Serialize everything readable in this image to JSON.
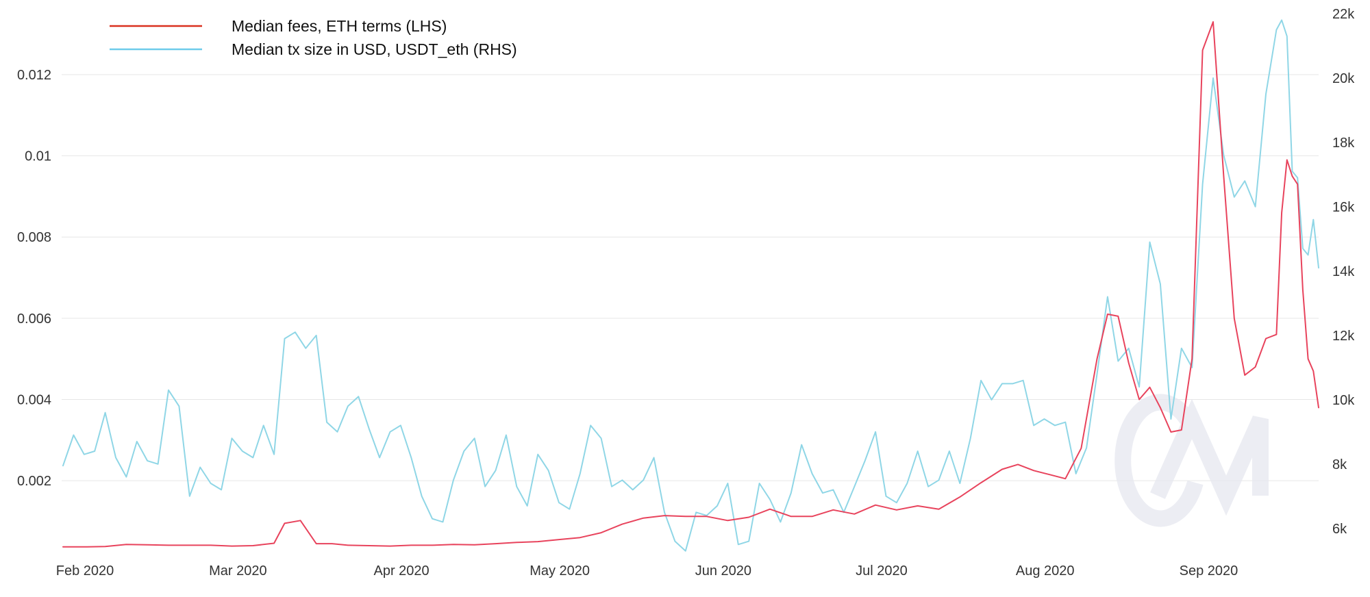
{
  "chart_data": {
    "type": "line",
    "title": "",
    "xlabel": "",
    "ylabel_left": "",
    "ylabel_right": "",
    "x_tick_labels": [
      "Feb 2020",
      "Mar 2020",
      "Apr 2020",
      "May 2020",
      "Jun 2020",
      "Jul 2020",
      "Aug 2020",
      "Sep 2020"
    ],
    "x_tick_dates": [
      "2020-02-01",
      "2020-03-01",
      "2020-04-01",
      "2020-05-01",
      "2020-06-01",
      "2020-07-01",
      "2020-08-01",
      "2020-09-01"
    ],
    "xlim": [
      "2020-02-01",
      "2020-09-26"
    ],
    "y_left_ticks": [
      "0.002",
      "0.004",
      "0.006",
      "0.008",
      "0.01",
      "0.012"
    ],
    "y_left_tick_values": [
      0.002,
      0.004,
      0.006,
      0.008,
      0.01,
      0.012
    ],
    "ylim_left": [
      0.00035,
      0.0135
    ],
    "y_right_ticks": [
      "6k",
      "8k",
      "10k",
      "12k",
      "14k",
      "16k",
      "18k",
      "20k",
      "22k"
    ],
    "y_right_tick_values": [
      6000,
      8000,
      10000,
      12000,
      14000,
      16000,
      18000,
      20000,
      22000
    ],
    "ylim_right": [
      5400,
      22000
    ],
    "grid": true,
    "legend_position": "top-left",
    "watermark": "CM",
    "series": [
      {
        "name": "Median fees, ETH terms (LHS)",
        "axis": "left",
        "color": "#e8435c",
        "legend_color": "#d9301f",
        "data": [
          [
            "2020-02-01",
            0.00037
          ],
          [
            "2020-02-05",
            0.00037
          ],
          [
            "2020-02-09",
            0.00038
          ],
          [
            "2020-02-13",
            0.00043
          ],
          [
            "2020-02-17",
            0.00042
          ],
          [
            "2020-02-21",
            0.00041
          ],
          [
            "2020-02-25",
            0.00041
          ],
          [
            "2020-02-29",
            0.00041
          ],
          [
            "2020-03-04",
            0.00039
          ],
          [
            "2020-03-08",
            0.0004
          ],
          [
            "2020-03-12",
            0.00046
          ],
          [
            "2020-03-14",
            0.00095
          ],
          [
            "2020-03-17",
            0.00102
          ],
          [
            "2020-03-20",
            0.00045
          ],
          [
            "2020-03-23",
            0.00045
          ],
          [
            "2020-03-26",
            0.00041
          ],
          [
            "2020-03-30",
            0.0004
          ],
          [
            "2020-04-03",
            0.00039
          ],
          [
            "2020-04-07",
            0.00041
          ],
          [
            "2020-04-11",
            0.00041
          ],
          [
            "2020-04-15",
            0.00043
          ],
          [
            "2020-04-19",
            0.00042
          ],
          [
            "2020-04-23",
            0.00045
          ],
          [
            "2020-04-27",
            0.00048
          ],
          [
            "2020-05-01",
            0.0005
          ],
          [
            "2020-05-05",
            0.00055
          ],
          [
            "2020-05-09",
            0.0006
          ],
          [
            "2020-05-13",
            0.00072
          ],
          [
            "2020-05-17",
            0.00093
          ],
          [
            "2020-05-21",
            0.00108
          ],
          [
            "2020-05-25",
            0.00114
          ],
          [
            "2020-05-29",
            0.00112
          ],
          [
            "2020-06-02",
            0.00112
          ],
          [
            "2020-06-06",
            0.00102
          ],
          [
            "2020-06-10",
            0.0011
          ],
          [
            "2020-06-14",
            0.0013
          ],
          [
            "2020-06-18",
            0.00112
          ],
          [
            "2020-06-22",
            0.00112
          ],
          [
            "2020-06-26",
            0.00128
          ],
          [
            "2020-06-30",
            0.00118
          ],
          [
            "2020-07-04",
            0.0014
          ],
          [
            "2020-07-08",
            0.00128
          ],
          [
            "2020-07-12",
            0.00138
          ],
          [
            "2020-07-16",
            0.0013
          ],
          [
            "2020-07-20",
            0.0016
          ],
          [
            "2020-07-24",
            0.00195
          ],
          [
            "2020-07-28",
            0.00228
          ],
          [
            "2020-07-31",
            0.0024
          ],
          [
            "2020-08-03",
            0.00225
          ],
          [
            "2020-08-06",
            0.00215
          ],
          [
            "2020-08-09",
            0.00205
          ],
          [
            "2020-08-12",
            0.0028
          ],
          [
            "2020-08-15",
            0.005
          ],
          [
            "2020-08-17",
            0.0061
          ],
          [
            "2020-08-19",
            0.00605
          ],
          [
            "2020-08-21",
            0.0049
          ],
          [
            "2020-08-23",
            0.004
          ],
          [
            "2020-08-25",
            0.0043
          ],
          [
            "2020-08-27",
            0.0038
          ],
          [
            "2020-08-29",
            0.0032
          ],
          [
            "2020-08-31",
            0.00325
          ],
          [
            "2020-09-02",
            0.005
          ],
          [
            "2020-09-04",
            0.0126
          ],
          [
            "2020-09-06",
            0.0133
          ],
          [
            "2020-09-08",
            0.0095
          ],
          [
            "2020-09-10",
            0.006
          ],
          [
            "2020-09-12",
            0.0046
          ],
          [
            "2020-09-14",
            0.0048
          ],
          [
            "2020-09-16",
            0.0055
          ],
          [
            "2020-09-18",
            0.0056
          ],
          [
            "2020-09-19",
            0.0086
          ],
          [
            "2020-09-20",
            0.0099
          ],
          [
            "2020-09-21",
            0.0095
          ],
          [
            "2020-09-22",
            0.0093
          ],
          [
            "2020-09-23",
            0.0067
          ],
          [
            "2020-09-24",
            0.005
          ],
          [
            "2020-09-25",
            0.0047
          ],
          [
            "2020-09-26",
            0.0038
          ]
        ]
      },
      {
        "name": "Median tx size in USD, USDT_eth (RHS)",
        "axis": "right",
        "color": "#8fd6e6",
        "legend_color": "#6ecbea",
        "data": [
          [
            "2020-02-01",
            7950
          ],
          [
            "2020-02-03",
            8900
          ],
          [
            "2020-02-05",
            8300
          ],
          [
            "2020-02-07",
            8400
          ],
          [
            "2020-02-09",
            9600
          ],
          [
            "2020-02-11",
            8200
          ],
          [
            "2020-02-13",
            7600
          ],
          [
            "2020-02-15",
            8700
          ],
          [
            "2020-02-17",
            8100
          ],
          [
            "2020-02-19",
            8000
          ],
          [
            "2020-02-21",
            10300
          ],
          [
            "2020-02-23",
            9800
          ],
          [
            "2020-02-25",
            7000
          ],
          [
            "2020-02-27",
            7900
          ],
          [
            "2020-02-29",
            7400
          ],
          [
            "2020-03-02",
            7200
          ],
          [
            "2020-03-04",
            8800
          ],
          [
            "2020-03-06",
            8400
          ],
          [
            "2020-03-08",
            8200
          ],
          [
            "2020-03-10",
            9200
          ],
          [
            "2020-03-12",
            8300
          ],
          [
            "2020-03-14",
            11900
          ],
          [
            "2020-03-16",
            12100
          ],
          [
            "2020-03-18",
            11600
          ],
          [
            "2020-03-20",
            12000
          ],
          [
            "2020-03-22",
            9300
          ],
          [
            "2020-03-24",
            9000
          ],
          [
            "2020-03-26",
            9800
          ],
          [
            "2020-03-28",
            10100
          ],
          [
            "2020-03-30",
            9100
          ],
          [
            "2020-04-01",
            8200
          ],
          [
            "2020-04-03",
            9000
          ],
          [
            "2020-04-05",
            9200
          ],
          [
            "2020-04-07",
            8200
          ],
          [
            "2020-04-09",
            7000
          ],
          [
            "2020-04-11",
            6300
          ],
          [
            "2020-04-13",
            6200
          ],
          [
            "2020-04-15",
            7500
          ],
          [
            "2020-04-17",
            8400
          ],
          [
            "2020-04-19",
            8800
          ],
          [
            "2020-04-21",
            7300
          ],
          [
            "2020-04-23",
            7800
          ],
          [
            "2020-04-25",
            8900
          ],
          [
            "2020-04-27",
            7300
          ],
          [
            "2020-04-29",
            6700
          ],
          [
            "2020-05-01",
            8300
          ],
          [
            "2020-05-03",
            7800
          ],
          [
            "2020-05-05",
            6800
          ],
          [
            "2020-05-07",
            6600
          ],
          [
            "2020-05-09",
            7700
          ],
          [
            "2020-05-11",
            9200
          ],
          [
            "2020-05-13",
            8800
          ],
          [
            "2020-05-15",
            7300
          ],
          [
            "2020-05-17",
            7500
          ],
          [
            "2020-05-19",
            7200
          ],
          [
            "2020-05-21",
            7500
          ],
          [
            "2020-05-23",
            8200
          ],
          [
            "2020-05-25",
            6500
          ],
          [
            "2020-05-27",
            5600
          ],
          [
            "2020-05-29",
            5300
          ],
          [
            "2020-05-31",
            6500
          ],
          [
            "2020-06-02",
            6400
          ],
          [
            "2020-06-04",
            6700
          ],
          [
            "2020-06-06",
            7400
          ],
          [
            "2020-06-08",
            5500
          ],
          [
            "2020-06-10",
            5600
          ],
          [
            "2020-06-12",
            7400
          ],
          [
            "2020-06-14",
            6900
          ],
          [
            "2020-06-16",
            6200
          ],
          [
            "2020-06-18",
            7100
          ],
          [
            "2020-06-20",
            8600
          ],
          [
            "2020-06-22",
            7700
          ],
          [
            "2020-06-24",
            7100
          ],
          [
            "2020-06-26",
            7200
          ],
          [
            "2020-06-28",
            6500
          ],
          [
            "2020-06-30",
            7300
          ],
          [
            "2020-07-02",
            8100
          ],
          [
            "2020-07-04",
            9000
          ],
          [
            "2020-07-06",
            7000
          ],
          [
            "2020-07-08",
            6800
          ],
          [
            "2020-07-10",
            7400
          ],
          [
            "2020-07-12",
            8400
          ],
          [
            "2020-07-14",
            7300
          ],
          [
            "2020-07-16",
            7500
          ],
          [
            "2020-07-18",
            8400
          ],
          [
            "2020-07-20",
            7400
          ],
          [
            "2020-07-22",
            8800
          ],
          [
            "2020-07-24",
            10600
          ],
          [
            "2020-07-26",
            10000
          ],
          [
            "2020-07-28",
            10500
          ],
          [
            "2020-07-30",
            10500
          ],
          [
            "2020-08-01",
            10600
          ],
          [
            "2020-08-03",
            9200
          ],
          [
            "2020-08-05",
            9400
          ],
          [
            "2020-08-07",
            9200
          ],
          [
            "2020-08-09",
            9300
          ],
          [
            "2020-08-11",
            7700
          ],
          [
            "2020-08-13",
            8500
          ],
          [
            "2020-08-15",
            10800
          ],
          [
            "2020-08-17",
            13200
          ],
          [
            "2020-08-19",
            11200
          ],
          [
            "2020-08-21",
            11600
          ],
          [
            "2020-08-23",
            10400
          ],
          [
            "2020-08-25",
            14900
          ],
          [
            "2020-08-27",
            13600
          ],
          [
            "2020-08-29",
            9400
          ],
          [
            "2020-08-31",
            11600
          ],
          [
            "2020-09-02",
            11000
          ],
          [
            "2020-09-04",
            16700
          ],
          [
            "2020-09-06",
            20000
          ],
          [
            "2020-09-08",
            17600
          ],
          [
            "2020-09-10",
            16300
          ],
          [
            "2020-09-12",
            16800
          ],
          [
            "2020-09-14",
            16000
          ],
          [
            "2020-09-16",
            19500
          ],
          [
            "2020-09-18",
            21500
          ],
          [
            "2020-09-19",
            21800
          ],
          [
            "2020-09-20",
            21300
          ],
          [
            "2020-09-21",
            17100
          ],
          [
            "2020-09-22",
            16900
          ],
          [
            "2020-09-23",
            14700
          ],
          [
            "2020-09-24",
            14500
          ],
          [
            "2020-09-25",
            15600
          ],
          [
            "2020-09-26",
            14100
          ]
        ]
      }
    ]
  }
}
